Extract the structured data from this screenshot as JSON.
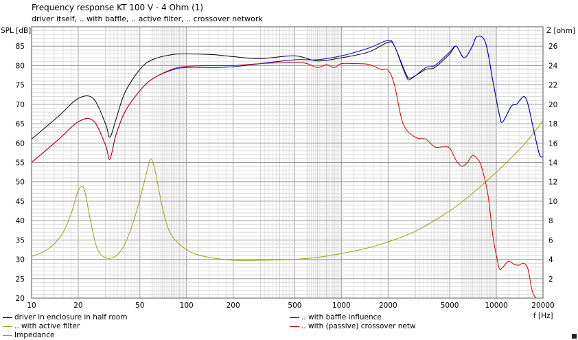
{
  "chart_data": {
    "type": "line",
    "title": "Frequency response KT 100 V - 4 Ohm (1)",
    "subtitle": "driver itself, .. with baffle, .. active filter, .. crossover network",
    "xlabel": "f [Hz]",
    "ylabel": "SPL [dB]",
    "y2label": "Z [ohm]",
    "xscale": "log",
    "xlim": [
      10,
      20000
    ],
    "ylim": [
      20,
      90
    ],
    "y2lim": [
      0,
      28
    ],
    "grid": true,
    "x_tick_labels": [
      "10",
      "20",
      "50",
      "100",
      "200",
      "500",
      "1000",
      "2000",
      "5000",
      "10000",
      "20000"
    ],
    "y_tick_labels": [
      "20",
      "25",
      "30",
      "35",
      "40",
      "45",
      "50",
      "55",
      "60",
      "65",
      "70",
      "75",
      "80",
      "85"
    ],
    "y2_tick_labels": [
      "2",
      "4",
      "6",
      "8",
      "10",
      "12",
      "14",
      "16",
      "18",
      "20",
      "22",
      "24",
      "26"
    ],
    "legend_placement": "bottom",
    "series": [
      {
        "name": "driver in enclosure in half room",
        "color": "#000000",
        "axis": "left",
        "points": [
          [
            10,
            61
          ],
          [
            15,
            67
          ],
          [
            20,
            71.5
          ],
          [
            25,
            71.5
          ],
          [
            30,
            65
          ],
          [
            32,
            61.5
          ],
          [
            35,
            66
          ],
          [
            40,
            73
          ],
          [
            50,
            79
          ],
          [
            60,
            81.5
          ],
          [
            80,
            82.8
          ],
          [
            100,
            83
          ],
          [
            150,
            82.8
          ],
          [
            200,
            82.3
          ],
          [
            300,
            81.8
          ],
          [
            500,
            82.5
          ],
          [
            700,
            81.2
          ],
          [
            1000,
            82
          ],
          [
            1500,
            83.5
          ],
          [
            2000,
            86
          ],
          [
            2200,
            85
          ],
          [
            2600,
            78
          ],
          [
            2800,
            76.8
          ],
          [
            3500,
            79
          ],
          [
            4000,
            79.5
          ],
          [
            5000,
            83
          ],
          [
            5500,
            85
          ],
          [
            6200,
            82
          ],
          [
            7000,
            85
          ],
          [
            7500,
            87.5
          ],
          [
            8500,
            86
          ],
          [
            9500,
            76
          ],
          [
            10500,
            67
          ],
          [
            11000,
            65.5
          ],
          [
            12500,
            69.5
          ],
          [
            13500,
            70
          ],
          [
            15000,
            72
          ],
          [
            16000,
            70
          ],
          [
            17500,
            63
          ],
          [
            19000,
            57
          ],
          [
            20000,
            56.5
          ]
        ]
      },
      {
        "name": ".. with baffle influence",
        "color": "#0000cc",
        "axis": "left",
        "points": [
          [
            10,
            55
          ],
          [
            15,
            61
          ],
          [
            20,
            65.5
          ],
          [
            25,
            65.8
          ],
          [
            30,
            59.5
          ],
          [
            32,
            55.8
          ],
          [
            35,
            62
          ],
          [
            40,
            68
          ],
          [
            50,
            73.5
          ],
          [
            60,
            76.5
          ],
          [
            80,
            78.8
          ],
          [
            100,
            79.5
          ],
          [
            150,
            79.5
          ],
          [
            200,
            79.7
          ],
          [
            300,
            80.5
          ],
          [
            500,
            81.5
          ],
          [
            700,
            81.5
          ],
          [
            1000,
            82.5
          ],
          [
            1500,
            84.5
          ],
          [
            2000,
            86.5
          ],
          [
            2200,
            85
          ],
          [
            2600,
            77.5
          ],
          [
            2800,
            76.5
          ],
          [
            3500,
            79.5
          ],
          [
            4000,
            80
          ],
          [
            5000,
            83.5
          ],
          [
            5500,
            85
          ],
          [
            6200,
            82
          ],
          [
            7000,
            85
          ],
          [
            7500,
            87.5
          ],
          [
            8500,
            86
          ],
          [
            9500,
            76
          ],
          [
            10500,
            67
          ],
          [
            11000,
            65.5
          ],
          [
            12500,
            69.5
          ],
          [
            13500,
            70
          ],
          [
            15000,
            72
          ],
          [
            16000,
            70
          ],
          [
            17500,
            63
          ],
          [
            19000,
            57
          ],
          [
            20000,
            56.5
          ]
        ]
      },
      {
        "name": ".. with active filter",
        "color": "#000000",
        "axis": "none",
        "points": []
      },
      {
        "name": ".. with (passive) crossover netw",
        "color": "#cc0000",
        "axis": "left",
        "points": [
          [
            10,
            55
          ],
          [
            15,
            61
          ],
          [
            20,
            65.5
          ],
          [
            25,
            65.8
          ],
          [
            30,
            59.5
          ],
          [
            32,
            55.8
          ],
          [
            35,
            62
          ],
          [
            40,
            68
          ],
          [
            50,
            73.5
          ],
          [
            60,
            76.5
          ],
          [
            80,
            79
          ],
          [
            100,
            79.8
          ],
          [
            150,
            80
          ],
          [
            200,
            80
          ],
          [
            300,
            80.5
          ],
          [
            500,
            80.8
          ],
          [
            600,
            80.5
          ],
          [
            700,
            79.5
          ],
          [
            800,
            80.2
          ],
          [
            900,
            79.5
          ],
          [
            1000,
            80.5
          ],
          [
            1200,
            80.5
          ],
          [
            1500,
            80.3
          ],
          [
            1800,
            79
          ],
          [
            2000,
            78.8
          ],
          [
            2200,
            75
          ],
          [
            2500,
            65
          ],
          [
            3000,
            61.5
          ],
          [
            3500,
            61
          ],
          [
            4000,
            59
          ],
          [
            4500,
            59
          ],
          [
            5000,
            58.7
          ],
          [
            5500,
            55.5
          ],
          [
            6000,
            54
          ],
          [
            6500,
            55
          ],
          [
            7000,
            56.8
          ],
          [
            7500,
            56
          ],
          [
            8000,
            54
          ],
          [
            8800,
            47
          ],
          [
            9500,
            36
          ],
          [
            10000,
            31
          ],
          [
            10500,
            27.5
          ],
          [
            11000,
            28
          ],
          [
            12000,
            29.5
          ],
          [
            13000,
            28.7
          ],
          [
            14000,
            28.5
          ],
          [
            15000,
            29
          ],
          [
            16000,
            27.5
          ],
          [
            17000,
            22
          ],
          [
            18000,
            20
          ],
          [
            19000,
            19.5
          ],
          [
            20000,
            19.5
          ]
        ]
      },
      {
        "name": "Impedance",
        "color": "#a0a000",
        "axis": "right",
        "points": [
          [
            10,
            4.3
          ],
          [
            12,
            4.8
          ],
          [
            14,
            5.6
          ],
          [
            16,
            6.8
          ],
          [
            18,
            8.7
          ],
          [
            19,
            10
          ],
          [
            20,
            11.1
          ],
          [
            21,
            11.5
          ],
          [
            22,
            11.1
          ],
          [
            24,
            8
          ],
          [
            26,
            5.5
          ],
          [
            28,
            4.5
          ],
          [
            30,
            4.2
          ],
          [
            32,
            4.1
          ],
          [
            36,
            4.5
          ],
          [
            40,
            5.6
          ],
          [
            45,
            7.7
          ],
          [
            50,
            10.2
          ],
          [
            55,
            12.8
          ],
          [
            58,
            14.2
          ],
          [
            60,
            14.2
          ],
          [
            63,
            13
          ],
          [
            67,
            10.8
          ],
          [
            72,
            8.5
          ],
          [
            80,
            6.5
          ],
          [
            100,
            5
          ],
          [
            130,
            4.3
          ],
          [
            200,
            3.9
          ],
          [
            300,
            3.9
          ],
          [
            500,
            4
          ],
          [
            700,
            4.2
          ],
          [
            1000,
            4.6
          ],
          [
            1500,
            5.2
          ],
          [
            2000,
            5.8
          ],
          [
            3000,
            6.9
          ],
          [
            5000,
            9
          ],
          [
            7000,
            10.8
          ],
          [
            10000,
            13
          ],
          [
            15000,
            15.8
          ],
          [
            20000,
            18.3
          ]
        ]
      }
    ]
  }
}
